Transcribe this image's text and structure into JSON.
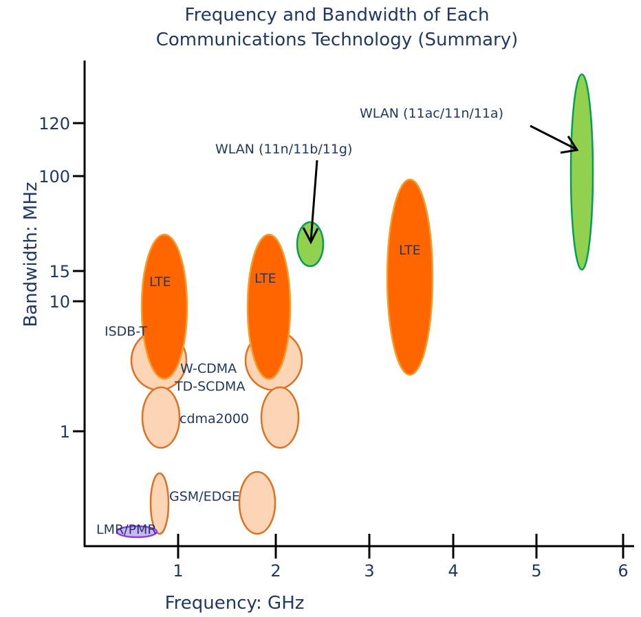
{
  "chart_data": {
    "type": "scatter",
    "title": "Frequency and Bandwidth of Each Communications Technology (Summary)",
    "title_lines": [
      "Frequency and Bandwidth of Each",
      "Communications Technology (Summary)"
    ],
    "xlabel": "Frequency: GHz",
    "ylabel": "Bandwidth: MHz",
    "xlim": [
      0,
      6.3
    ],
    "x_ticks": [
      1,
      2,
      3,
      4,
      5,
      6
    ],
    "y_ticks": [
      "1",
      "10",
      "15",
      "100",
      "120"
    ],
    "grid": false,
    "colors": {
      "axis": "#000000",
      "text": "#1f3864",
      "lte_fill": "#ff6600",
      "lte_stroke": "#f0a030",
      "light_fill": "#fbd5b5",
      "light_stroke": "#e07020",
      "wlan_fill": "#92d050",
      "wlan_stroke": "#00a050",
      "lmr_fill": "#c9b6f2",
      "lmr_stroke": "#8a3fe0"
    },
    "technologies": [
      {
        "label": "LMR/PMR"
      },
      {
        "label": "GSM/EDGE"
      },
      {
        "label": "cdma2000"
      },
      {
        "label": "W-CDMA"
      },
      {
        "label": "TD-SCDMA"
      },
      {
        "label": "ISDB-T"
      },
      {
        "label": "LTE"
      },
      {
        "label": "LTE"
      },
      {
        "label": "LTE"
      },
      {
        "label": "WLAN (11n/11b/11g)"
      },
      {
        "label": "WLAN (11ac/11n/11a)"
      }
    ]
  }
}
